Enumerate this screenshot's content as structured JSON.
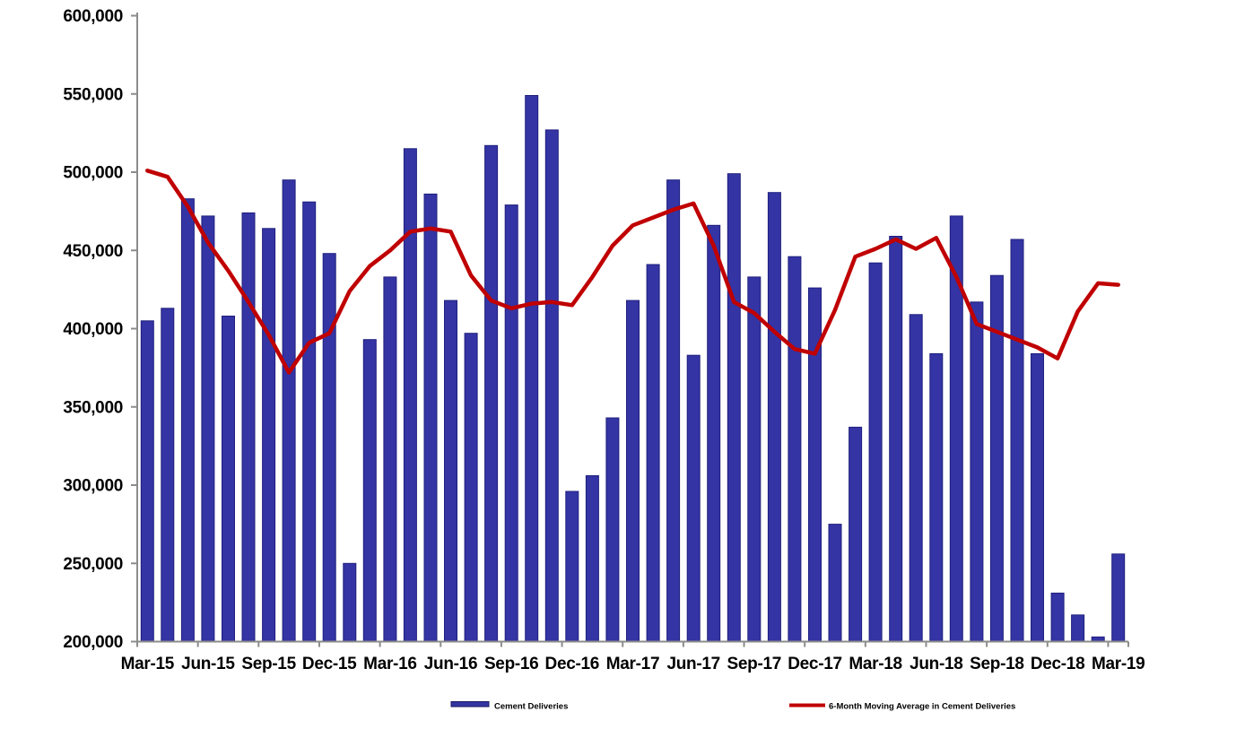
{
  "page": {
    "background": "#FFFFFF"
  },
  "chart_data": {
    "type": "bar",
    "title": "",
    "xlabel": "",
    "ylabel": "",
    "categories": [
      "Mar-15",
      "Apr-15",
      "May-15",
      "Jun-15",
      "Jul-15",
      "Aug-15",
      "Sep-15",
      "Oct-15",
      "Nov-15",
      "Dec-15",
      "Jan-16",
      "Feb-16",
      "Mar-16",
      "Apr-16",
      "May-16",
      "Jun-16",
      "Jul-16",
      "Aug-16",
      "Sep-16",
      "Oct-16",
      "Nov-16",
      "Dec-16",
      "Jan-17",
      "Feb-17",
      "Mar-17",
      "Apr-17",
      "May-17",
      "Jun-17",
      "Jul-17",
      "Aug-17",
      "Sep-17",
      "Oct-17",
      "Nov-17",
      "Dec-17",
      "Jan-18",
      "Feb-18",
      "Mar-18",
      "Apr-18",
      "May-18",
      "Jun-18",
      "Jul-18",
      "Aug-18",
      "Sep-18",
      "Oct-18",
      "Nov-18",
      "Dec-18",
      "Jan-19",
      "Feb-19",
      "Mar-19"
    ],
    "series": [
      {
        "name": "Cement Deliveries",
        "type": "bar",
        "color": "#3434A4",
        "border_color": "#1F1F7E",
        "values": [
          405000,
          413000,
          483000,
          472000,
          408000,
          474000,
          464000,
          495000,
          481000,
          448000,
          250000,
          393000,
          433000,
          515000,
          486000,
          418000,
          397000,
          517000,
          479000,
          549000,
          527000,
          296000,
          306000,
          343000,
          418000,
          441000,
          495000,
          383000,
          466000,
          499000,
          433000,
          487000,
          446000,
          426000,
          275000,
          337000,
          442000,
          459000,
          409000,
          384000,
          472000,
          417000,
          434000,
          457000,
          384000,
          231000,
          217000,
          203000,
          256000
        ]
      },
      {
        "name": "6-Month Moving Average in Cement Deliveries",
        "type": "line",
        "color": "#C00000",
        "values": [
          501000,
          497000,
          478000,
          455000,
          437000,
          417000,
          396000,
          372000,
          391000,
          397000,
          424000,
          440000,
          450000,
          462000,
          464000,
          462000,
          434000,
          418000,
          413000,
          416000,
          417000,
          415000,
          433000,
          453000,
          466000,
          471000,
          476000,
          480000,
          453000,
          417000,
          410000,
          398000,
          387000,
          384000,
          412000,
          446000,
          451000,
          457000,
          451000,
          458000,
          433000,
          403000,
          398000,
          393000,
          388000,
          381000,
          411000,
          429000,
          428000
        ]
      }
    ],
    "ylim": [
      200000,
      600000
    ],
    "y_ticks": [
      200000,
      250000,
      300000,
      350000,
      400000,
      450000,
      500000,
      550000,
      600000
    ],
    "y_tick_labels": [
      "200,000",
      "250,000",
      "300,000",
      "350,000",
      "400,000",
      "450,000",
      "500,000",
      "550,000",
      "600,000"
    ],
    "x_tick_labels": [
      "Mar-15",
      "Jun-15",
      "Sep-15",
      "Dec-15",
      "Mar-16",
      "Jun-16",
      "Sep-16",
      "Dec-16",
      "Mar-17",
      "Jun-17",
      "Sep-17",
      "Dec-17",
      "Mar-18",
      "Jun-18",
      "Sep-18",
      "Dec-18",
      "Mar-19"
    ],
    "x_tick_every": 3,
    "grid": false,
    "legend_position": "bottom",
    "axis_color": "#8C8C8C",
    "text_color": "#000000"
  }
}
